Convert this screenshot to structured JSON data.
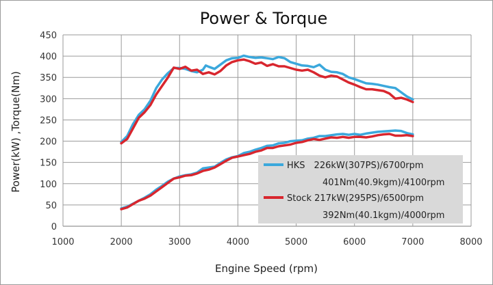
{
  "chart_data": {
    "type": "line",
    "title": "Power & Torque",
    "xlabel": "Engine Speed (rpm)",
    "ylabel": "Power(kW) ,Torque(Nm)",
    "xlim": [
      1000,
      8000
    ],
    "ylim": [
      0,
      450
    ],
    "x_ticks": [
      "1000",
      "2000",
      "3000",
      "4000",
      "5000",
      "6000",
      "7000",
      "8000"
    ],
    "y_ticks": [
      "0",
      "50",
      "100",
      "150",
      "200",
      "250",
      "300",
      "350",
      "400",
      "450"
    ],
    "grid": true,
    "legend_position": "bottom-right",
    "colors": {
      "HKS": "#3ba8dc",
      "Stock": "#d8262e"
    },
    "legend": [
      {
        "name": "HKS",
        "color": "#3ba8dc",
        "lines": [
          "HKS　226kW(307PS)/6700rpm",
          "401Nm(40.9kgm)/4100rpm"
        ]
      },
      {
        "name": "Stock",
        "color": "#d8262e",
        "lines": [
          "Stock 217kW(295PS)/6500rpm",
          "392Nm(40.1kgm)/4000rpm"
        ]
      }
    ],
    "series": [
      {
        "name": "HKS",
        "quantity": "torque",
        "color": "#3ba8dc",
        "x": [
          2000,
          2100,
          2200,
          2300,
          2400,
          2500,
          2600,
          2700,
          2800,
          2900,
          3000,
          3100,
          3200,
          3300,
          3400,
          3450,
          3500,
          3600,
          3700,
          3800,
          3900,
          4000,
          4100,
          4200,
          4300,
          4400,
          4500,
          4600,
          4700,
          4800,
          4900,
          5000,
          5100,
          5200,
          5300,
          5400,
          5500,
          5600,
          5700,
          5800,
          5900,
          6000,
          6100,
          6200,
          6300,
          6400,
          6500,
          6600,
          6700,
          6800,
          6900,
          7000
        ],
        "y": [
          198,
          212,
          240,
          262,
          275,
          295,
          325,
          345,
          360,
          372,
          372,
          370,
          365,
          362,
          368,
          378,
          375,
          370,
          380,
          390,
          395,
          396,
          401,
          398,
          396,
          397,
          395,
          393,
          398,
          395,
          386,
          382,
          378,
          377,
          374,
          380,
          368,
          363,
          362,
          358,
          350,
          346,
          341,
          336,
          335,
          333,
          330,
          327,
          325,
          315,
          305,
          298
        ]
      },
      {
        "name": "Stock",
        "quantity": "torque",
        "color": "#d8262e",
        "x": [
          2000,
          2100,
          2200,
          2300,
          2400,
          2500,
          2600,
          2700,
          2800,
          2900,
          3000,
          3100,
          3200,
          3300,
          3400,
          3500,
          3600,
          3700,
          3800,
          3900,
          4000,
          4100,
          4200,
          4300,
          4400,
          4500,
          4600,
          4700,
          4800,
          4900,
          5000,
          5100,
          5200,
          5300,
          5400,
          5500,
          5600,
          5700,
          5800,
          5900,
          6000,
          6100,
          6200,
          6300,
          6400,
          6500,
          6600,
          6700,
          6800,
          6900,
          7000
        ],
        "y": [
          195,
          205,
          230,
          255,
          268,
          285,
          310,
          330,
          350,
          373,
          370,
          375,
          366,
          368,
          358,
          362,
          357,
          365,
          378,
          386,
          390,
          392,
          388,
          382,
          385,
          377,
          381,
          376,
          376,
          372,
          368,
          366,
          368,
          362,
          354,
          350,
          354,
          352,
          345,
          338,
          333,
          327,
          322,
          322,
          320,
          318,
          312,
          300,
          302,
          298,
          292
        ]
      },
      {
        "name": "HKS",
        "quantity": "power",
        "color": "#3ba8dc",
        "x": [
          2000,
          2100,
          2200,
          2300,
          2400,
          2500,
          2600,
          2700,
          2800,
          2900,
          3000,
          3100,
          3200,
          3300,
          3400,
          3500,
          3600,
          3700,
          3800,
          3900,
          4000,
          4100,
          4200,
          4300,
          4400,
          4500,
          4600,
          4700,
          4800,
          4900,
          5000,
          5100,
          5200,
          5300,
          5400,
          5500,
          5600,
          5700,
          5800,
          5900,
          6000,
          6100,
          6200,
          6300,
          6400,
          6500,
          6600,
          6700,
          6800,
          6900,
          7000
        ],
        "y": [
          42,
          46,
          53,
          60,
          67,
          75,
          86,
          95,
          105,
          112,
          117,
          120,
          122,
          126,
          136,
          138,
          140,
          149,
          157,
          162,
          165,
          172,
          175,
          180,
          184,
          189,
          190,
          195,
          196,
          200,
          201,
          202,
          206,
          208,
          212,
          212,
          214,
          216,
          217,
          215,
          217,
          215,
          218,
          220,
          222,
          223,
          224,
          225,
          224,
          219,
          216
        ]
      },
      {
        "name": "Stock",
        "quantity": "power",
        "color": "#d8262e",
        "x": [
          2000,
          2100,
          2200,
          2300,
          2400,
          2500,
          2600,
          2700,
          2800,
          2900,
          3000,
          3100,
          3200,
          3300,
          3400,
          3500,
          3600,
          3700,
          3800,
          3900,
          4000,
          4100,
          4200,
          4300,
          4400,
          4500,
          4600,
          4700,
          4800,
          4900,
          5000,
          5100,
          5200,
          5300,
          5400,
          5500,
          5600,
          5700,
          5800,
          5900,
          6000,
          6100,
          6200,
          6300,
          6400,
          6500,
          6600,
          6700,
          6800,
          6900,
          7000
        ],
        "y": [
          40,
          44,
          52,
          60,
          65,
          72,
          82,
          92,
          102,
          112,
          115,
          119,
          120,
          124,
          130,
          133,
          138,
          146,
          154,
          161,
          164,
          167,
          170,
          175,
          178,
          184,
          184,
          188,
          190,
          192,
          196,
          198,
          202,
          205,
          203,
          206,
          209,
          208,
          210,
          208,
          210,
          210,
          209,
          211,
          214,
          216,
          217,
          213,
          213,
          214,
          212
        ]
      }
    ]
  }
}
